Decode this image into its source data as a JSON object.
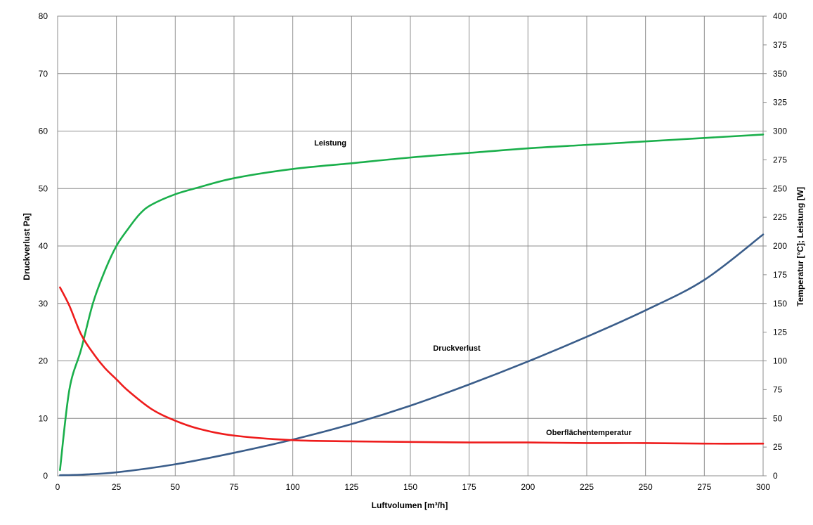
{
  "chart_data": {
    "type": "line",
    "xlabel": "Luftvolumen [m³/h]",
    "ylabel": "Druckverlust Pa]",
    "y2label": "Temperatur [°C]; Leistung [W]",
    "xlim": [
      0,
      300
    ],
    "ylim": [
      0,
      80
    ],
    "y2lim": [
      0,
      400
    ],
    "x_ticks": [
      "0",
      "25",
      "50",
      "75",
      "100",
      "125",
      "150",
      "175",
      "200",
      "225",
      "250",
      "275",
      "300"
    ],
    "y_ticks": [
      "0",
      "10",
      "20",
      "30",
      "40",
      "50",
      "60",
      "70",
      "80"
    ],
    "y2_ticks": [
      "0",
      "25",
      "50",
      "75",
      "100",
      "125",
      "150",
      "175",
      "200",
      "225",
      "250",
      "275",
      "300",
      "325",
      "350",
      "375",
      "400"
    ],
    "grid": true,
    "series": [
      {
        "name": "Leistung",
        "axis": "right",
        "color": "#1aaf4b",
        "x": [
          1,
          5,
          10,
          15,
          20,
          25,
          30,
          35,
          40,
          50,
          60,
          75,
          100,
          125,
          150,
          175,
          200,
          225,
          250,
          275,
          300
        ],
        "y": [
          5,
          75,
          110,
          150,
          178,
          200,
          215,
          228,
          236,
          245,
          251,
          259,
          267,
          272,
          277,
          281,
          285,
          288,
          291,
          294,
          297
        ]
      },
      {
        "name": "Druckverlust",
        "axis": "left",
        "color": "#3a5d8a",
        "x": [
          1,
          10,
          25,
          50,
          75,
          100,
          125,
          150,
          175,
          200,
          225,
          250,
          275,
          300
        ],
        "y": [
          0.1,
          0.2,
          0.6,
          2.0,
          4.0,
          6.3,
          9.0,
          12.2,
          15.9,
          19.9,
          24.2,
          28.8,
          34.1,
          42.0
        ]
      },
      {
        "name": "Oberflächentemperatur",
        "axis": "right",
        "color": "#ee1c1c",
        "x": [
          1,
          5,
          10,
          15,
          20,
          25,
          30,
          40,
          50,
          60,
          75,
          100,
          125,
          150,
          175,
          200,
          225,
          250,
          275,
          300
        ],
        "y": [
          164,
          148,
          123,
          107,
          94,
          84,
          74,
          58,
          48,
          41,
          35,
          31,
          30,
          29.5,
          29,
          29,
          28.5,
          28.5,
          28,
          28
        ]
      }
    ],
    "annotations": [
      {
        "text": "Leistung",
        "series": 0
      },
      {
        "text": "Druckverlust",
        "series": 1
      },
      {
        "text": "Oberflächentemperatur",
        "series": 2
      }
    ]
  }
}
